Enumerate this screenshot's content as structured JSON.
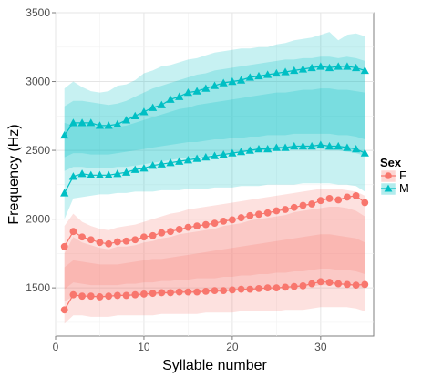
{
  "chart_data": {
    "type": "line",
    "xlabel": "Syllable number",
    "ylabel": "Frequency (Hz)",
    "xlim": [
      0,
      36
    ],
    "ylim": [
      1150,
      3500
    ],
    "x_ticks": [
      0,
      10,
      20,
      30
    ],
    "y_ticks": [
      1500,
      2000,
      2500,
      3000,
      3500
    ],
    "grid": true,
    "legend": {
      "title": "Sex",
      "position": "right",
      "entries": [
        {
          "label": "F",
          "color": "#F8766D",
          "marker": "circle"
        },
        {
          "label": "M",
          "color": "#00BFC4",
          "marker": "triangle"
        }
      ]
    },
    "x": [
      1,
      2,
      3,
      4,
      5,
      6,
      7,
      8,
      9,
      10,
      11,
      12,
      13,
      14,
      15,
      16,
      17,
      18,
      19,
      20,
      21,
      22,
      23,
      24,
      25,
      26,
      27,
      28,
      29,
      30,
      31,
      32,
      33,
      34,
      35
    ],
    "series": [
      {
        "name": "F",
        "color": "#F8766D",
        "marker": "circle",
        "upper_line": [
          1800,
          1910,
          1870,
          1850,
          1830,
          1820,
          1835,
          1840,
          1850,
          1870,
          1880,
          1900,
          1910,
          1925,
          1940,
          1950,
          1960,
          1970,
          1985,
          1995,
          2010,
          2025,
          2035,
          2045,
          2060,
          2070,
          2085,
          2100,
          2110,
          2135,
          2150,
          2140,
          2160,
          2170,
          2120
        ],
        "lower_line": [
          1340,
          1450,
          1440,
          1440,
          1435,
          1440,
          1445,
          1445,
          1450,
          1455,
          1460,
          1465,
          1465,
          1470,
          1470,
          1470,
          1475,
          1480,
          1480,
          1485,
          1490,
          1490,
          1495,
          1500,
          1500,
          1505,
          1510,
          1515,
          1530,
          1545,
          1540,
          1530,
          1525,
          1520,
          1525
        ],
        "bands": [
          {
            "upper": [
              1950,
              2040,
              1980,
              1950,
              1930,
              1920,
              1940,
              1950,
              1960,
              1980,
              2000,
              2020,
              2040,
              2050,
              2070,
              2080,
              2090,
              2100,
              2110,
              2120,
              2130,
              2140,
              2150,
              2160,
              2170,
              2180,
              2190,
              2200,
              2210,
              2220,
              2220,
              2220,
              2210,
              2200,
              2170
            ],
            "lower": [
              1240,
              1300,
              1300,
              1290,
              1290,
              1290,
              1300,
              1300,
              1300,
              1300,
              1300,
              1310,
              1310,
              1310,
              1310,
              1310,
              1320,
              1320,
              1320,
              1320,
              1330,
              1330,
              1330,
              1330,
              1330,
              1340,
              1340,
              1340,
              1350,
              1360,
              1360,
              1360,
              1360,
              1350,
              1330
            ]
          },
          {
            "upper": [
              1750,
              1870,
              1830,
              1810,
              1790,
              1780,
              1800,
              1800,
              1810,
              1830,
              1840,
              1860,
              1870,
              1890,
              1900,
              1910,
              1920,
              1930,
              1950,
              1960,
              1970,
              1990,
              2000,
              2010,
              2020,
              2030,
              2050,
              2060,
              2070,
              2080,
              2090,
              2090,
              2080,
              2060,
              2020
            ],
            "lower": [
              1400,
              1440,
              1440,
              1430,
              1430,
              1430,
              1440,
              1440,
              1440,
              1440,
              1450,
              1450,
              1460,
              1460,
              1460,
              1460,
              1470,
              1470,
              1470,
              1480,
              1480,
              1480,
              1490,
              1490,
              1490,
              1500,
              1500,
              1510,
              1510,
              1520,
              1520,
              1520,
              1520,
              1510,
              1500
            ]
          },
          {
            "upper": [
              1650,
              1700,
              1690,
              1680,
              1670,
              1670,
              1670,
              1680,
              1690,
              1700,
              1710,
              1710,
              1720,
              1730,
              1740,
              1750,
              1760,
              1770,
              1780,
              1790,
              1800,
              1810,
              1820,
              1830,
              1840,
              1850,
              1860,
              1870,
              1880,
              1890,
              1890,
              1880,
              1870,
              1860,
              1830
            ],
            "lower": [
              1490,
              1540,
              1530,
              1520,
              1520,
              1520,
              1520,
              1530,
              1530,
              1540,
              1540,
              1550,
              1550,
              1560,
              1560,
              1570,
              1570,
              1570,
              1580,
              1580,
              1590,
              1590,
              1600,
              1600,
              1610,
              1610,
              1620,
              1620,
              1630,
              1640,
              1640,
              1630,
              1630,
              1620,
              1600
            ]
          }
        ]
      },
      {
        "name": "M",
        "color": "#00BFC4",
        "marker": "triangle",
        "upper_line": [
          2610,
          2700,
          2700,
          2700,
          2680,
          2680,
          2690,
          2720,
          2750,
          2780,
          2810,
          2830,
          2870,
          2890,
          2920,
          2930,
          2950,
          2970,
          2990,
          3000,
          3010,
          3030,
          3040,
          3050,
          3060,
          3070,
          3080,
          3090,
          3100,
          3110,
          3100,
          3110,
          3110,
          3100,
          3080
        ],
        "lower_line": [
          2190,
          2310,
          2330,
          2320,
          2320,
          2320,
          2330,
          2340,
          2360,
          2370,
          2390,
          2400,
          2410,
          2420,
          2430,
          2440,
          2450,
          2460,
          2470,
          2480,
          2490,
          2500,
          2510,
          2510,
          2520,
          2520,
          2530,
          2530,
          2530,
          2540,
          2530,
          2530,
          2520,
          2510,
          2480
        ],
        "bands": [
          {
            "upper": [
              2950,
              3000,
              2960,
              2930,
              2920,
              2930,
              2970,
              2980,
              3010,
              3060,
              3080,
              3110,
              3120,
              3140,
              3160,
              3170,
              3190,
              3210,
              3220,
              3230,
              3240,
              3240,
              3250,
              3250,
              3270,
              3280,
              3300,
              3310,
              3320,
              3340,
              3360,
              3300,
              3340,
              3350,
              3330
            ],
            "lower": [
              2000,
              2150,
              2160,
              2170,
              2180,
              2180,
              2190,
              2190,
              2200,
              2200,
              2200,
              2210,
              2210,
              2210,
              2220,
              2220,
              2220,
              2230,
              2230,
              2230,
              2240,
              2240,
              2240,
              2250,
              2250,
              2250,
              2250,
              2260,
              2260,
              2260,
              2260,
              2250,
              2250,
              2240,
              2200
            ]
          },
          {
            "upper": [
              2820,
              2860,
              2860,
              2850,
              2840,
              2830,
              2840,
              2860,
              2890,
              2920,
              2950,
              2970,
              2990,
              3010,
              3030,
              3050,
              3060,
              3080,
              3090,
              3100,
              3110,
              3120,
              3130,
              3140,
              3150,
              3160,
              3160,
              3170,
              3170,
              3180,
              3180,
              3170,
              3180,
              3170,
              3150
            ],
            "lower": [
              2350,
              2380,
              2380,
              2370,
              2370,
              2370,
              2380,
              2380,
              2390,
              2400,
              2410,
              2420,
              2430,
              2440,
              2450,
              2450,
              2460,
              2470,
              2470,
              2480,
              2490,
              2490,
              2500,
              2500,
              2500,
              2510,
              2510,
              2510,
              2510,
              2510,
              2500,
              2500,
              2490,
              2480,
              2460
            ]
          },
          {
            "upper": [
              2700,
              2680,
              2680,
              2670,
              2660,
              2660,
              2670,
              2680,
              2700,
              2720,
              2740,
              2760,
              2780,
              2800,
              2810,
              2830,
              2840,
              2850,
              2860,
              2870,
              2880,
              2890,
              2900,
              2910,
              2920,
              2920,
              2930,
              2940,
              2940,
              2950,
              2950,
              2940,
              2940,
              2930,
              2920
            ],
            "lower": [
              2450,
              2480,
              2480,
              2470,
              2470,
              2470,
              2480,
              2490,
              2500,
              2510,
              2520,
              2530,
              2540,
              2550,
              2560,
              2560,
              2570,
              2580,
              2580,
              2590,
              2590,
              2600,
              2600,
              2610,
              2610,
              2610,
              2620,
              2620,
              2620,
              2620,
              2620,
              2610,
              2610,
              2600,
              2580
            ]
          }
        ]
      }
    ]
  }
}
